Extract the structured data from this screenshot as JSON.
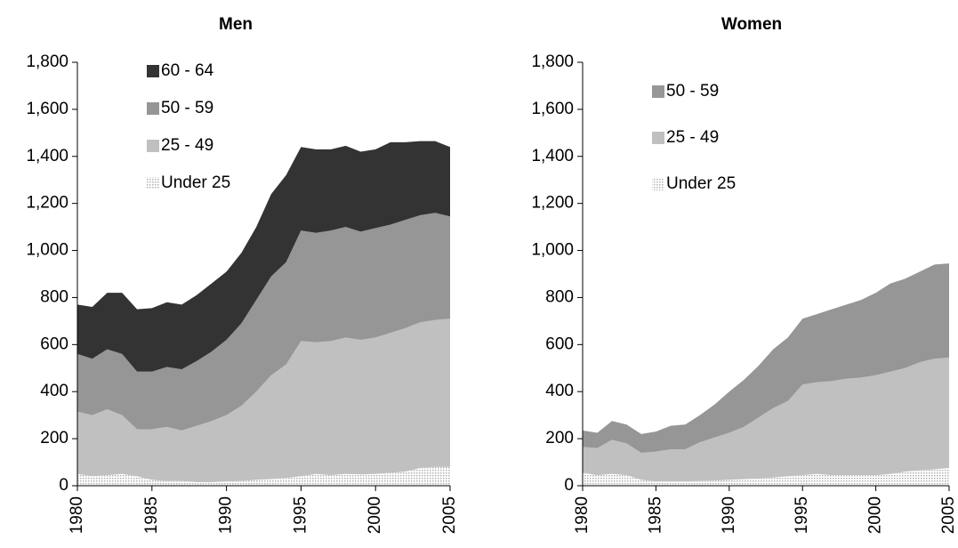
{
  "chart_data": [
    {
      "type": "stacked-area",
      "title": "Men",
      "x": [
        1980,
        1981,
        1982,
        1983,
        1984,
        1985,
        1986,
        1987,
        1988,
        1989,
        1990,
        1991,
        1992,
        1993,
        1994,
        1995,
        1996,
        1997,
        1998,
        1999,
        2000,
        2001,
        2002,
        2003,
        2004,
        2005
      ],
      "xlim": [
        1980,
        2005
      ],
      "xticks": [
        1980,
        1985,
        1990,
        1995,
        2000,
        2005
      ],
      "ylim": [
        0,
        1800
      ],
      "yticks": [
        0,
        200,
        400,
        600,
        800,
        {
          "value": 1000,
          "label": "1,000"
        },
        {
          "value": 1200,
          "label": "1,200"
        },
        {
          "value": 1400,
          "label": "1,400"
        },
        {
          "value": 1600,
          "label": "1,600"
        },
        {
          "value": 1800,
          "label": "1,800"
        }
      ],
      "series": [
        {
          "name": "Under 25",
          "color": "#dcdcdc",
          "values": [
            50,
            40,
            45,
            50,
            40,
            25,
            20,
            20,
            15,
            15,
            18,
            20,
            25,
            28,
            33,
            40,
            50,
            45,
            50,
            48,
            50,
            55,
            60,
            75,
            80,
            80
          ]
        },
        {
          "name": "25 - 49",
          "color": "#c0c0c0",
          "values": [
            265,
            260,
            280,
            250,
            200,
            215,
            230,
            215,
            240,
            260,
            282,
            320,
            375,
            442,
            482,
            575,
            560,
            570,
            580,
            572,
            580,
            595,
            610,
            620,
            625,
            630
          ]
        },
        {
          "name": "50 - 59",
          "color": "#969696",
          "values": [
            245,
            240,
            255,
            260,
            245,
            245,
            255,
            260,
            275,
            295,
            320,
            350,
            390,
            420,
            435,
            470,
            465,
            470,
            470,
            460,
            465,
            460,
            460,
            455,
            455,
            435
          ]
        },
        {
          "name": "60 - 64",
          "color": "#333333",
          "values": [
            210,
            220,
            240,
            260,
            265,
            270,
            275,
            275,
            280,
            290,
            290,
            300,
            310,
            350,
            370,
            355,
            355,
            345,
            345,
            340,
            335,
            350,
            330,
            315,
            305,
            295
          ]
        }
      ]
    },
    {
      "type": "stacked-area",
      "title": "Women",
      "x": [
        1980,
        1981,
        1982,
        1983,
        1984,
        1985,
        1986,
        1987,
        1988,
        1989,
        1990,
        1991,
        1992,
        1993,
        1994,
        1995,
        1996,
        1997,
        1998,
        1999,
        2000,
        2001,
        2002,
        2003,
        2004,
        2005
      ],
      "xlim": [
        1980,
        2005
      ],
      "xticks": [
        1980,
        1985,
        1990,
        1995,
        2000,
        2005
      ],
      "ylim": [
        0,
        1800
      ],
      "yticks": [
        0,
        200,
        400,
        600,
        800,
        {
          "value": 1000,
          "label": "1,000"
        },
        {
          "value": 1200,
          "label": "1,200"
        },
        {
          "value": 1400,
          "label": "1,400"
        },
        {
          "value": 1600,
          "label": "1,600"
        },
        {
          "value": 1800,
          "label": "1,800"
        }
      ],
      "series": [
        {
          "name": "Under 25",
          "color": "#dcdcdc",
          "values": [
            55,
            45,
            50,
            45,
            25,
            18,
            18,
            18,
            20,
            22,
            25,
            28,
            30,
            35,
            40,
            45,
            50,
            45,
            45,
            45,
            45,
            50,
            60,
            65,
            70,
            75
          ]
        },
        {
          "name": "25 - 49",
          "color": "#c0c0c0",
          "values": [
            110,
            115,
            145,
            135,
            115,
            127,
            137,
            137,
            165,
            183,
            200,
            222,
            260,
            295,
            320,
            385,
            390,
            400,
            410,
            415,
            425,
            435,
            440,
            460,
            470,
            470
          ]
        },
        {
          "name": "50 - 59",
          "color": "#969696",
          "values": [
            70,
            65,
            80,
            80,
            80,
            85,
            100,
            105,
            115,
            140,
            175,
            200,
            220,
            250,
            270,
            280,
            290,
            305,
            315,
            330,
            350,
            375,
            380,
            385,
            400,
            400
          ]
        }
      ]
    }
  ]
}
